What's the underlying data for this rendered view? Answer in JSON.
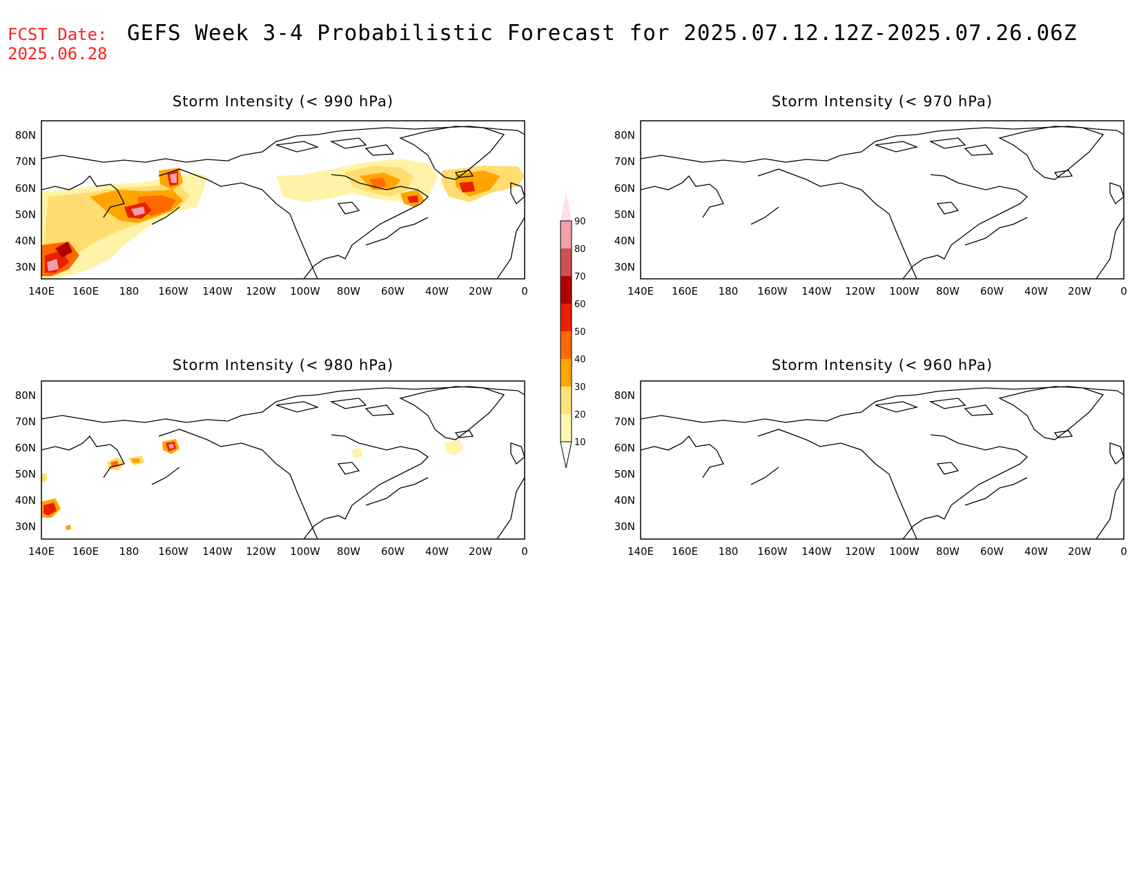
{
  "header": {
    "fcst_label": "FCST Date:",
    "fcst_date": "2025.06.28",
    "title": "GEFS Week 3-4 Probabilistic Forecast for 2025.07.12.12Z-2025.07.26.06Z"
  },
  "axes": {
    "lat_labels": [
      "80N",
      "70N",
      "60N",
      "50N",
      "40N",
      "30N"
    ],
    "lon_labels": [
      "140E",
      "160E",
      "180",
      "160W",
      "140W",
      "120W",
      "100W",
      "80W",
      "60W",
      "40W",
      "20W",
      "0"
    ]
  },
  "panels": [
    {
      "title": "Storm Intensity (< 990 hPa)"
    },
    {
      "title": "Storm Intensity (< 970 hPa)"
    },
    {
      "title": "Storm Intensity (< 980 hPa)"
    },
    {
      "title": "Storm Intensity (< 960 hPa)"
    }
  ],
  "colorbar": {
    "labels": [
      "10",
      "20",
      "30",
      "40",
      "50",
      "60",
      "70",
      "80",
      "90"
    ],
    "colors": [
      "#fff7b0",
      "#ffe27a",
      "#ffa500",
      "#ff6a00",
      "#e82000",
      "#b00000",
      "#d05050",
      "#f0a0a8",
      "#fde0e8"
    ]
  },
  "colors": {
    "fcst": "#ff2020"
  }
}
